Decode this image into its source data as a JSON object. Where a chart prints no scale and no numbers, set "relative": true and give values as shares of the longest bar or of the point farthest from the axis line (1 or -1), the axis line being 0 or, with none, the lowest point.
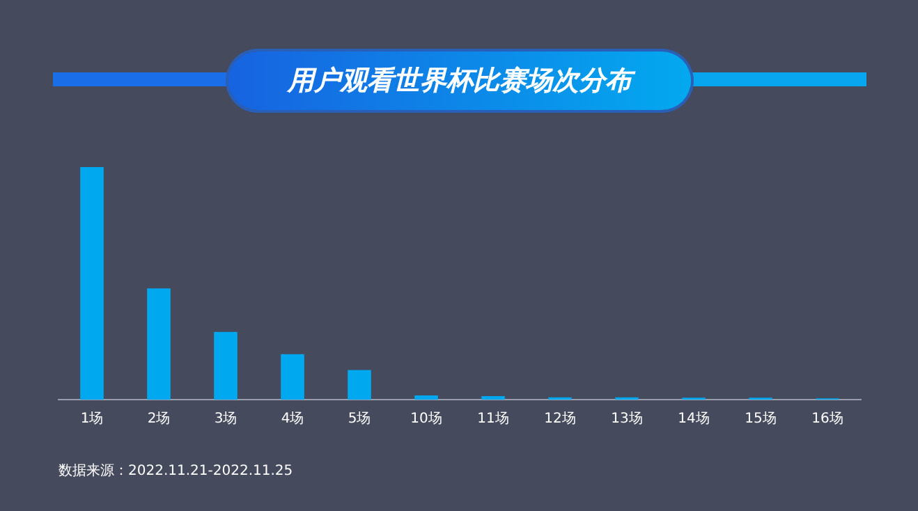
{
  "chart_data": {
    "type": "bar",
    "title": "用户观看世界杯比赛场次分布",
    "categories": [
      "1场",
      "2场",
      "3场",
      "4场",
      "5场",
      "10场",
      "11场",
      "12场",
      "13场",
      "14场",
      "15场",
      "16场"
    ],
    "values": [
      1,
      0.478,
      0.291,
      0.195,
      0.127,
      0.018,
      0.015,
      0.01,
      0.01,
      0.008,
      0.008,
      0.005
    ],
    "color": "#00a8f0",
    "relative": true,
    "grid": false,
    "legend": false,
    "annotations": [
      "数据来源：2022.11.21-2022.11.25"
    ]
  }
}
